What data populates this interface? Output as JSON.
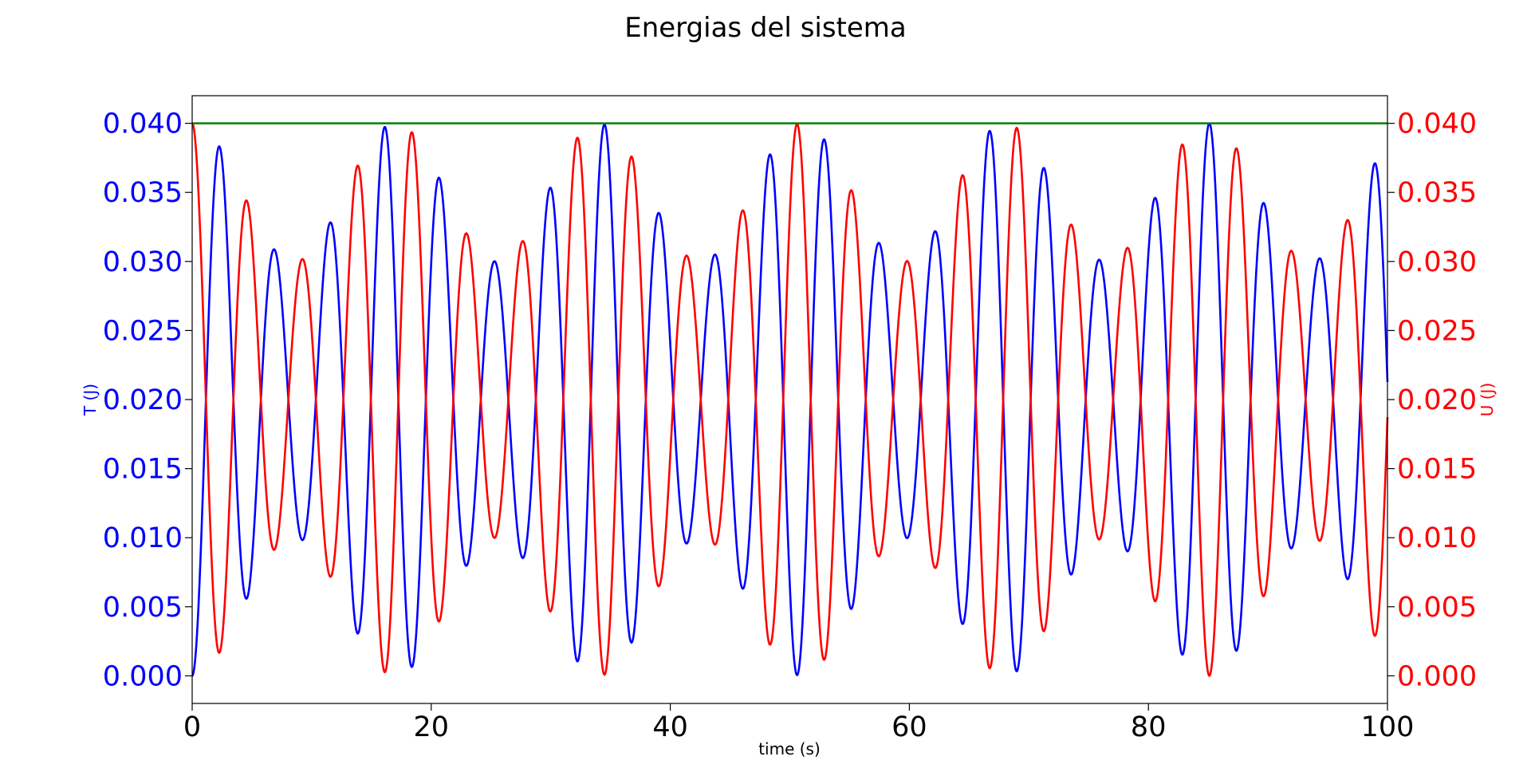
{
  "chart_data": {
    "type": "line",
    "title": "Energias del sistema",
    "xlabel": "time (s)",
    "ylabel_left": "T (J)",
    "ylabel_right": "U (J)",
    "xlim": [
      0,
      100
    ],
    "ylim": [
      -0.002,
      0.042
    ],
    "x_ticks": [
      0,
      20,
      40,
      60,
      80,
      100
    ],
    "y_ticks": [
      0.0,
      0.005,
      0.01,
      0.015,
      0.02,
      0.025,
      0.03,
      0.035,
      0.04
    ],
    "x_tick_labels": [
      "0",
      "20",
      "40",
      "60",
      "80",
      "100"
    ],
    "y_tick_labels": [
      "0.000",
      "0.005",
      "0.010",
      "0.015",
      "0.020",
      "0.025",
      "0.030",
      "0.035",
      "0.040"
    ],
    "grid": false,
    "colors": {
      "T": "#0000ff",
      "U": "#ff0000",
      "E": "#008000",
      "axes": "#000000"
    },
    "total_energy": 0.04,
    "oscillation": {
      "base_period_s": 4.6,
      "beat_period_s": 17.0,
      "T_peaks_mean": 0.035,
      "T_peaks_amplitude": 0.005,
      "T_troughs_mean": 0.005,
      "T_troughs_amplitude": 0.005
    },
    "series": [
      {
        "name": "T",
        "axis": "left",
        "color": "#0000ff",
        "x": [
          0,
          100
        ],
        "y_start": 0.0
      },
      {
        "name": "U",
        "axis": "right",
        "color": "#ff0000",
        "x": [
          0,
          100
        ],
        "y_start": 0.04
      },
      {
        "name": "E",
        "axis": "both",
        "color": "#008000",
        "x": [
          0,
          100
        ],
        "y": [
          0.04,
          0.04
        ]
      }
    ]
  }
}
